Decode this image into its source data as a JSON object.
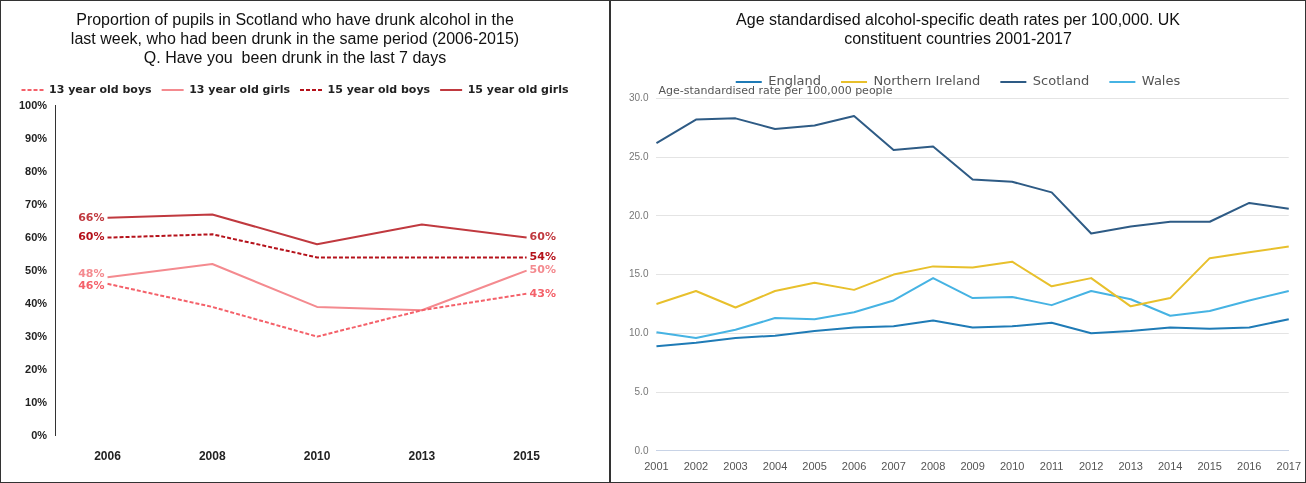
{
  "chart_data": [
    {
      "type": "line",
      "title": [
        "Proportion of pupils in Scotland who have drunk alcohol in the",
        "last week, who had been drunk in the same period (2006-2015)",
        "Q. Have you  been drunk in the last 7 days"
      ],
      "categories": [
        "2006",
        "2008",
        "2010",
        "2013",
        "2015"
      ],
      "series": [
        {
          "name": "13 year old boys",
          "color": "#f4616a",
          "line_style": "dashed",
          "values": [
            46,
            39,
            30,
            38,
            43
          ],
          "value_labels": [
            "46%",
            null,
            null,
            null,
            "43%"
          ]
        },
        {
          "name": "13 year old girls",
          "color": "#f48a8f",
          "line_style": "solid",
          "values": [
            48,
            52,
            39,
            38,
            50
          ],
          "value_labels": [
            "48%",
            null,
            null,
            null,
            "50%"
          ]
        },
        {
          "name": "15 year old boys",
          "color": "#b5121b",
          "line_style": "dashed",
          "values": [
            60,
            61,
            54,
            54,
            54
          ],
          "value_labels": [
            "60%",
            null,
            null,
            null,
            "54%"
          ]
        },
        {
          "name": "15 year old girls",
          "color": "#c0393f",
          "line_style": "solid",
          "values": [
            66,
            67,
            58,
            64,
            60
          ],
          "value_labels": [
            "66%",
            null,
            null,
            null,
            "60%"
          ]
        }
      ],
      "ylim": [
        0,
        100
      ],
      "yticks": [
        {
          "value": 0,
          "label": "0%"
        },
        {
          "value": 10,
          "label": "10%"
        },
        {
          "value": 20,
          "label": "20%"
        },
        {
          "value": 30,
          "label": "30%"
        },
        {
          "value": 40,
          "label": "40%"
        },
        {
          "value": 50,
          "label": "50%"
        },
        {
          "value": 60,
          "label": "60%"
        },
        {
          "value": 70,
          "label": "70%"
        },
        {
          "value": 80,
          "label": "80%"
        },
        {
          "value": 90,
          "label": "90%"
        },
        {
          "value": 100,
          "label": "100%"
        }
      ],
      "grid": false,
      "legend": "top",
      "marker": "none"
    },
    {
      "type": "line",
      "title": [
        "Age standardised alcohol-specific death rates per 100,000. UK",
        "constituent countries 2001-2017"
      ],
      "ylabel": "Age-standardised rate per 100,000 people",
      "categories": [
        "2001",
        "2002",
        "2003",
        "2004",
        "2005",
        "2006",
        "2007",
        "2008",
        "2009",
        "2010",
        "2011",
        "2012",
        "2013",
        "2014",
        "2015",
        "2016",
        "2017"
      ],
      "series": [
        {
          "name": "England",
          "color": "#1f7bb6",
          "values": [
            8.9,
            9.2,
            9.6,
            9.8,
            10.2,
            10.5,
            10.6,
            11.1,
            10.5,
            10.6,
            10.9,
            10.0,
            10.2,
            10.5,
            10.4,
            10.5,
            11.2
          ]
        },
        {
          "name": "Northern Ireland",
          "color": "#e8c02c",
          "values": [
            12.5,
            13.6,
            12.2,
            13.6,
            14.3,
            13.7,
            15.0,
            15.7,
            15.6,
            16.1,
            14.0,
            14.7,
            12.3,
            13.0,
            16.4,
            16.9,
            17.4
          ]
        },
        {
          "name": "Scotland",
          "color": "#2e5b85",
          "values": [
            26.2,
            28.2,
            28.3,
            27.4,
            27.7,
            28.5,
            25.6,
            25.9,
            23.1,
            22.9,
            22.0,
            18.5,
            19.1,
            19.5,
            19.5,
            21.1,
            20.6
          ]
        },
        {
          "name": "Wales",
          "color": "#46b3e3",
          "values": [
            10.1,
            9.6,
            10.3,
            11.3,
            11.2,
            11.8,
            12.8,
            14.7,
            13.0,
            13.1,
            12.4,
            13.6,
            12.9,
            11.5,
            11.9,
            12.8,
            13.6
          ]
        }
      ],
      "ylim": [
        0,
        30
      ],
      "yticks": [
        {
          "value": 0,
          "label": "0.0"
        },
        {
          "value": 5,
          "label": "5.0"
        },
        {
          "value": 10,
          "label": "10.0"
        },
        {
          "value": 15,
          "label": "15.0"
        },
        {
          "value": 20,
          "label": "20.0"
        },
        {
          "value": 25,
          "label": "25.0"
        },
        {
          "value": 30,
          "label": "30.0"
        }
      ],
      "grid": "y",
      "legend": "top",
      "marker": "none",
      "line_style": "solid"
    }
  ]
}
